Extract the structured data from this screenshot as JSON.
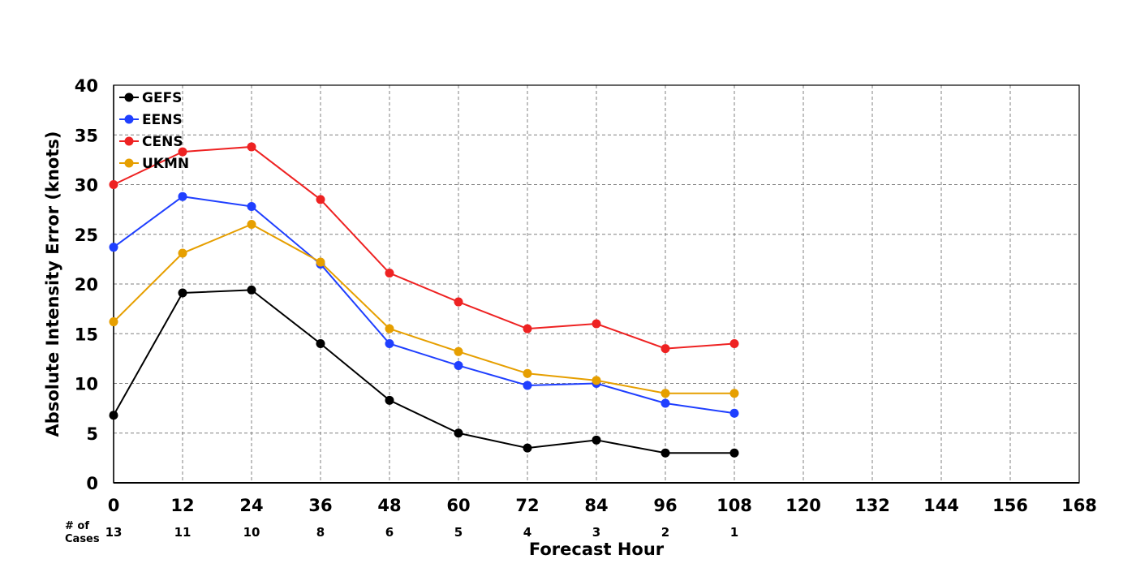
{
  "chart_data": {
    "type": "line",
    "xlabel": "Forecast Hour",
    "ylabel": "Absolute Intensity Error (knots)",
    "xlim": [
      0,
      168
    ],
    "ylim": [
      0,
      40
    ],
    "xticks": [
      "0",
      "12",
      "24",
      "36",
      "48",
      "60",
      "72",
      "84",
      "96",
      "108",
      "120",
      "132",
      "144",
      "156",
      "168"
    ],
    "yticks": [
      "0",
      "5",
      "10",
      "15",
      "20",
      "25",
      "30",
      "35",
      "40"
    ],
    "grid": true,
    "legend_position": "top-left",
    "x": [
      0,
      12,
      24,
      36,
      48,
      60,
      72,
      84,
      96,
      108
    ],
    "series": [
      {
        "name": "GEFS",
        "color": "#000000",
        "values": [
          6.8,
          19.1,
          19.4,
          14.0,
          8.3,
          5.0,
          3.5,
          4.3,
          3.0,
          3.0
        ]
      },
      {
        "name": "EENS",
        "color": "#1f3fff",
        "values": [
          23.7,
          28.8,
          27.8,
          22.0,
          14.0,
          11.8,
          9.8,
          10.0,
          8.0,
          7.0
        ]
      },
      {
        "name": "CENS",
        "color": "#ee2222",
        "values": [
          30.0,
          33.3,
          33.8,
          28.5,
          21.1,
          18.2,
          15.5,
          16.0,
          13.5,
          14.0
        ]
      },
      {
        "name": "UKMN",
        "color": "#e69f00",
        "values": [
          16.2,
          23.1,
          26.0,
          22.2,
          15.5,
          13.2,
          11.0,
          10.3,
          9.0,
          9.0
        ]
      }
    ],
    "cases_label_line1": "# of",
    "cases_label_line2": "Cases",
    "cases": [
      "13",
      "11",
      "10",
      "8",
      "6",
      "5",
      "4",
      "3",
      "2",
      "1"
    ]
  }
}
